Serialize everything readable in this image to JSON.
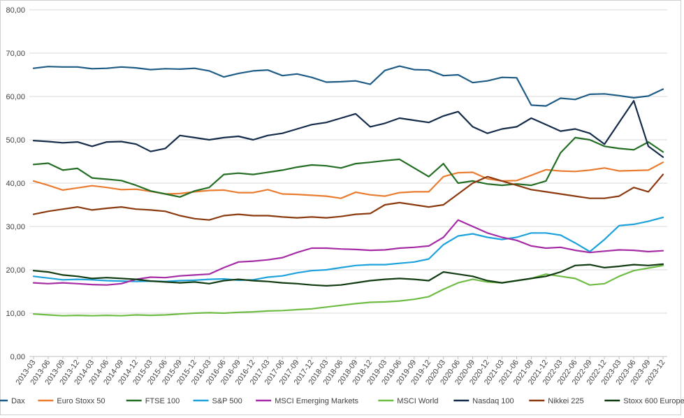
{
  "chart_data": {
    "type": "line",
    "title": "",
    "xlabel": "",
    "ylabel": "",
    "ylim": [
      0,
      80
    ],
    "yticks": [
      "0,00",
      "10,00",
      "20,00",
      "30,00",
      "40,00",
      "50,00",
      "60,00",
      "70,00",
      "80,00"
    ],
    "grid": true,
    "legend_position": "bottom",
    "x_tick_labels": [
      "2013-03",
      "2013-06",
      "2013-09",
      "2013-12",
      "2014-03",
      "2014-06",
      "2014-09",
      "2014-12",
      "2015-03",
      "2015-06",
      "2015-09",
      "2015-12",
      "2016-03",
      "2016-06",
      "2016-09",
      "2016-12",
      "2017-03",
      "2017-06",
      "2017-09",
      "2017-12",
      "2018-03",
      "2018-06",
      "2018-09",
      "2018-12",
      "2019-03",
      "2019-06",
      "2019-09",
      "2019-12",
      "2020-03",
      "2020-06",
      "2020-09",
      "2020-12",
      "2021-03",
      "2021-06",
      "2021-09",
      "2021-12",
      "2022-03",
      "2022-06",
      "2022-09",
      "2022-12",
      "2023-03",
      "2023-06",
      "2023-09",
      "2023-12"
    ],
    "series": [
      {
        "name": "Dax",
        "color": "#1F5C85",
        "values": [
          66.5,
          66.9,
          66.8,
          66.8,
          66.4,
          66.5,
          66.8,
          66.6,
          66.2,
          66.4,
          66.3,
          66.5,
          65.9,
          64.5,
          65.3,
          65.9,
          66.1,
          64.8,
          65.2,
          64.4,
          63.3,
          63.4,
          63.6,
          62.8,
          66.0,
          67.0,
          66.2,
          66.1,
          64.8,
          65.0,
          63.2,
          63.6,
          64.4,
          64.3,
          58.0,
          57.8,
          59.6,
          59.3,
          60.5,
          60.6,
          60.2,
          59.7,
          60.1,
          61.7
        ]
      },
      {
        "name": "Euro Stoxx 50",
        "color": "#E97C31",
        "values": [
          40.5,
          39.5,
          38.4,
          38.9,
          39.4,
          39.0,
          38.5,
          38.6,
          38.1,
          37.5,
          37.6,
          38.0,
          38.3,
          38.4,
          37.8,
          37.8,
          38.5,
          37.5,
          37.4,
          37.2,
          37.0,
          36.5,
          37.9,
          37.3,
          37.0,
          37.8,
          38.0,
          38.0,
          41.5,
          42.4,
          42.5,
          41.0,
          40.5,
          40.6,
          41.8,
          43.1,
          42.8,
          42.7,
          43.0,
          43.5,
          42.8,
          42.9,
          43.0,
          44.8
        ]
      },
      {
        "name": "FTSE 100",
        "color": "#246D24",
        "values": [
          44.3,
          44.6,
          43.0,
          43.4,
          41.2,
          40.9,
          40.6,
          39.5,
          38.2,
          37.5,
          36.8,
          38.2,
          39.0,
          42.0,
          42.3,
          42.0,
          42.5,
          43.0,
          43.7,
          44.2,
          44.0,
          43.5,
          44.5,
          44.8,
          45.2,
          45.5,
          43.5,
          41.5,
          44.5,
          40.0,
          40.5,
          39.8,
          39.5,
          39.8,
          39.5,
          40.5,
          47.0,
          50.5,
          50.0,
          48.5,
          48.0,
          47.7,
          49.5,
          47.2
        ]
      },
      {
        "name": "S&P 500",
        "color": "#1DA2DC",
        "values": [
          18.5,
          18.1,
          17.7,
          17.8,
          17.7,
          17.5,
          17.4,
          17.3,
          17.4,
          17.3,
          17.5,
          17.6,
          17.8,
          17.9,
          17.6,
          17.7,
          18.3,
          18.6,
          19.3,
          19.8,
          20.0,
          20.5,
          21.0,
          21.2,
          21.2,
          21.5,
          21.8,
          22.5,
          25.8,
          27.8,
          28.3,
          27.5,
          27.0,
          27.5,
          28.5,
          28.5,
          28.0,
          26.2,
          24.2,
          27.0,
          30.2,
          30.5,
          31.2,
          32.1
        ]
      },
      {
        "name": "MSCI Emerging Markets",
        "color": "#A52CA5",
        "values": [
          17.0,
          16.8,
          17.0,
          16.8,
          16.6,
          16.5,
          16.8,
          17.8,
          18.3,
          18.2,
          18.6,
          18.8,
          19.0,
          20.5,
          21.8,
          22.0,
          22.3,
          22.8,
          24.0,
          25.0,
          25.0,
          24.8,
          24.7,
          24.5,
          24.6,
          25.0,
          25.2,
          25.5,
          27.5,
          31.5,
          30.0,
          28.5,
          27.5,
          26.8,
          25.5,
          25.0,
          25.2,
          24.5,
          24.0,
          24.3,
          24.6,
          24.5,
          24.2,
          24.4
        ]
      },
      {
        "name": "MSCI World",
        "color": "#6FBC45",
        "values": [
          9.8,
          9.6,
          9.4,
          9.5,
          9.4,
          9.5,
          9.4,
          9.6,
          9.5,
          9.6,
          9.8,
          10.0,
          10.1,
          10.0,
          10.2,
          10.3,
          10.5,
          10.6,
          10.8,
          11.0,
          11.4,
          11.8,
          12.2,
          12.5,
          12.6,
          12.8,
          13.2,
          13.8,
          15.5,
          17.0,
          17.8,
          17.2,
          17.0,
          17.5,
          18.0,
          19.0,
          18.5,
          18.0,
          16.5,
          16.8,
          18.5,
          19.8,
          20.4,
          21.0
        ]
      },
      {
        "name": "Nasdaq 100",
        "color": "#142C4A",
        "values": [
          49.8,
          49.6,
          49.3,
          49.5,
          48.5,
          49.5,
          49.6,
          49.0,
          47.3,
          48.0,
          51.0,
          50.5,
          50.0,
          50.5,
          50.8,
          50.0,
          51.0,
          51.5,
          52.5,
          53.5,
          54.0,
          55.0,
          56.0,
          53.0,
          53.8,
          55.0,
          54.5,
          54.0,
          55.5,
          56.5,
          53.0,
          51.5,
          52.5,
          53.0,
          55.0,
          53.5,
          52.0,
          52.5,
          51.5,
          49.0,
          54.0,
          59.0,
          48.5,
          46.0
        ]
      },
      {
        "name": "Nikkei 225",
        "color": "#8B3A0F",
        "values": [
          32.8,
          33.5,
          34.0,
          34.5,
          33.8,
          34.2,
          34.5,
          34.0,
          33.8,
          33.5,
          32.5,
          31.8,
          31.5,
          32.5,
          32.8,
          32.5,
          32.5,
          32.2,
          32.0,
          32.2,
          32.0,
          32.3,
          32.8,
          33.0,
          35.0,
          35.5,
          35.0,
          34.5,
          35.0,
          37.5,
          40.0,
          41.5,
          40.5,
          39.5,
          38.5,
          38.0,
          37.5,
          37.0,
          36.5,
          36.5,
          37.0,
          39.0,
          38.0,
          42.0
        ]
      },
      {
        "name": "Stoxx 600 Europe",
        "color": "#113B11",
        "values": [
          19.8,
          19.5,
          18.8,
          18.5,
          18.0,
          18.2,
          18.0,
          17.8,
          17.4,
          17.2,
          17.0,
          17.2,
          16.8,
          17.5,
          17.8,
          17.5,
          17.3,
          17.0,
          16.8,
          16.5,
          16.3,
          16.5,
          17.0,
          17.5,
          17.8,
          18.0,
          17.8,
          17.5,
          19.5,
          19.0,
          18.5,
          17.5,
          17.0,
          17.5,
          18.0,
          18.5,
          19.5,
          21.0,
          21.2,
          20.5,
          20.8,
          21.2,
          21.0,
          21.3
        ]
      }
    ]
  }
}
